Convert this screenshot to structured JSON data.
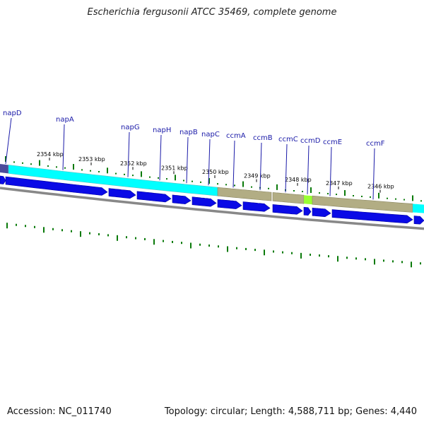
{
  "title": "Escherichia fergusonii ATCC 35469, complete genome",
  "footer": {
    "accession": "Accession: NC_011740",
    "info": "Topology: circular; Length: 4,588,711 bp; Genes: 4,440"
  },
  "colors": {
    "gene_label": "#1a1aa8",
    "gene_arrow": "#0a0ae6",
    "cyan_track": "#00ffff",
    "olive_track": "#b2ad84",
    "lime_segment": "#99ff33",
    "tick": "#0a7a0a",
    "backbone": "#888888"
  },
  "genes": [
    {
      "name": "napD"
    },
    {
      "name": "napA"
    },
    {
      "name": "napG"
    },
    {
      "name": "napH"
    },
    {
      "name": "napB"
    },
    {
      "name": "napC"
    },
    {
      "name": "ccmA"
    },
    {
      "name": "ccmB"
    },
    {
      "name": "ccmC"
    },
    {
      "name": "ccmD"
    },
    {
      "name": "ccmE"
    },
    {
      "name": "ccmF"
    }
  ],
  "scale_labels": [
    {
      "text": "2354 kbp"
    },
    {
      "text": "2353 kbp"
    },
    {
      "text": "2352 kbp"
    },
    {
      "text": "2351 kbp"
    },
    {
      "text": "2350 kbp"
    },
    {
      "text": "2349 kbp"
    },
    {
      "text": "2348 kbp"
    },
    {
      "text": "2347 kbp"
    },
    {
      "text": "2346 kbp"
    }
  ]
}
